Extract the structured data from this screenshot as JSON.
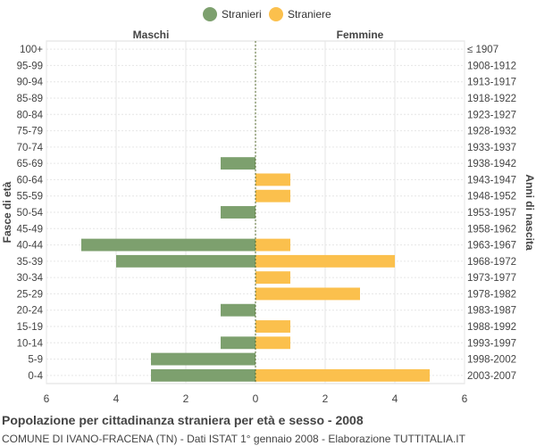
{
  "legend": [
    {
      "label": "Stranieri",
      "color": "#7da06e"
    },
    {
      "label": "Straniere",
      "color": "#fbc04d"
    }
  ],
  "footer": {
    "title": "Popolazione per cittadinanza straniera per età e sesso - 2008",
    "subtitle": "COMUNE DI IVANO-FRACENA (TN) - Dati ISTAT 1° gennaio 2008 - Elaborazione TUTTITALIA.IT"
  },
  "chart_data": {
    "type": "bar",
    "orientation": "horizontal-pyramid",
    "title": "",
    "left_header": "Maschi",
    "right_header": "Femmine",
    "ylabel_left": "Fasce di età",
    "ylabel_right": "Anni di nascita",
    "categories": [
      "100+",
      "95-99",
      "90-94",
      "85-89",
      "80-84",
      "75-79",
      "70-74",
      "65-69",
      "60-64",
      "55-59",
      "50-54",
      "45-49",
      "40-44",
      "35-39",
      "30-34",
      "25-29",
      "20-24",
      "15-19",
      "10-14",
      "5-9",
      "0-4"
    ],
    "birth_years": [
      "≤ 1907",
      "1908-1912",
      "1913-1917",
      "1918-1922",
      "1923-1927",
      "1928-1932",
      "1933-1937",
      "1938-1942",
      "1943-1947",
      "1948-1952",
      "1953-1957",
      "1958-1962",
      "1963-1967",
      "1968-1972",
      "1973-1977",
      "1978-1982",
      "1983-1987",
      "1988-1992",
      "1993-1997",
      "1998-2002",
      "2003-2007"
    ],
    "series": [
      {
        "name": "Stranieri",
        "color": "#7da06e",
        "values": [
          0,
          0,
          0,
          0,
          0,
          0,
          0,
          1,
          0,
          0,
          1,
          0,
          5,
          4,
          0,
          0,
          1,
          0,
          1,
          3,
          3
        ]
      },
      {
        "name": "Straniere",
        "color": "#fbc04d",
        "values": [
          0,
          0,
          0,
          0,
          0,
          0,
          0,
          0,
          1,
          1,
          0,
          0,
          1,
          4,
          1,
          3,
          0,
          1,
          1,
          0,
          5
        ]
      }
    ],
    "xlim": [
      -6,
      6
    ],
    "xticks": [
      -6,
      -4,
      -2,
      0,
      2,
      4,
      6
    ],
    "xtick_labels": [
      "6",
      "4",
      "2",
      "0",
      "2",
      "4",
      "6"
    ],
    "grid": true,
    "legend_position": "top-center"
  }
}
